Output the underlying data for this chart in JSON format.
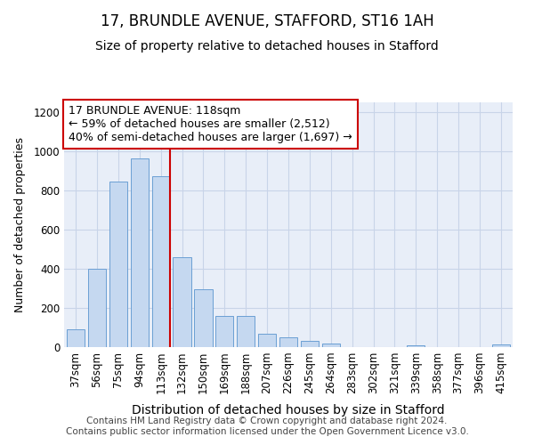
{
  "title": "17, BRUNDLE AVENUE, STAFFORD, ST16 1AH",
  "subtitle": "Size of property relative to detached houses in Stafford",
  "xlabel": "Distribution of detached houses by size in Stafford",
  "ylabel": "Number of detached properties",
  "categories": [
    "37sqm",
    "56sqm",
    "75sqm",
    "94sqm",
    "113sqm",
    "132sqm",
    "150sqm",
    "169sqm",
    "188sqm",
    "207sqm",
    "226sqm",
    "245sqm",
    "264sqm",
    "283sqm",
    "302sqm",
    "321sqm",
    "339sqm",
    "358sqm",
    "377sqm",
    "396sqm",
    "415sqm"
  ],
  "values": [
    90,
    400,
    845,
    965,
    875,
    460,
    295,
    160,
    160,
    70,
    50,
    32,
    20,
    0,
    0,
    0,
    10,
    0,
    0,
    0,
    15
  ],
  "bar_color": "#c5d8f0",
  "bar_edge_color": "#6b9fd4",
  "grid_color": "#c8d4e8",
  "bg_color": "#e8eef8",
  "annotation_line1": "17 BRUNDLE AVENUE: 118sqm",
  "annotation_line2": "← 59% of detached houses are smaller (2,512)",
  "annotation_line3": "40% of semi-detached houses are larger (1,697) →",
  "annotation_box_facecolor": "#ffffff",
  "annotation_box_edgecolor": "#cc0000",
  "vline_color": "#cc0000",
  "vline_x_index": 4,
  "ylim": [
    0,
    1250
  ],
  "yticks": [
    0,
    200,
    400,
    600,
    800,
    1000,
    1200
  ],
  "footer_text": "Contains HM Land Registry data © Crown copyright and database right 2024.\nContains public sector information licensed under the Open Government Licence v3.0.",
  "title_fontsize": 12,
  "subtitle_fontsize": 10,
  "ylabel_fontsize": 9,
  "xlabel_fontsize": 10,
  "tick_fontsize": 8.5,
  "annotation_fontsize": 9,
  "footer_fontsize": 7.5
}
